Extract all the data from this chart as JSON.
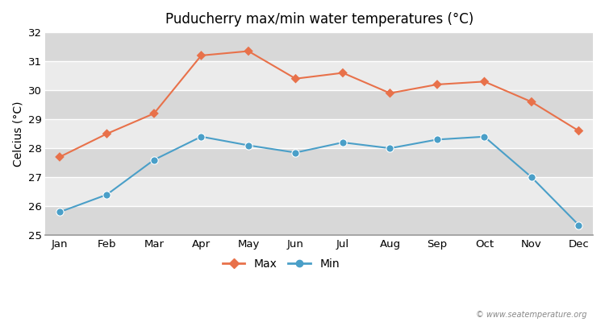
{
  "title": "Puducherry max/min water temperatures (°C)",
  "ylabel": "Celcius (°C)",
  "months": [
    "Jan",
    "Feb",
    "Mar",
    "Apr",
    "May",
    "Jun",
    "Jul",
    "Aug",
    "Sep",
    "Oct",
    "Nov",
    "Dec"
  ],
  "max_temps": [
    27.7,
    28.5,
    29.2,
    31.2,
    31.35,
    30.4,
    30.6,
    29.9,
    30.2,
    30.3,
    29.6,
    28.6
  ],
  "min_temps": [
    25.8,
    26.4,
    27.6,
    28.4,
    28.1,
    27.85,
    28.2,
    28.0,
    28.3,
    28.4,
    27.0,
    25.35
  ],
  "ylim": [
    25,
    32
  ],
  "yticks": [
    25,
    26,
    27,
    28,
    29,
    30,
    31,
    32
  ],
  "max_color": "#e8714a",
  "min_color": "#4a9fc8",
  "bg_light": "#ebebeb",
  "bg_dark": "#d8d8d8",
  "watermark": "© www.seatemperature.org"
}
